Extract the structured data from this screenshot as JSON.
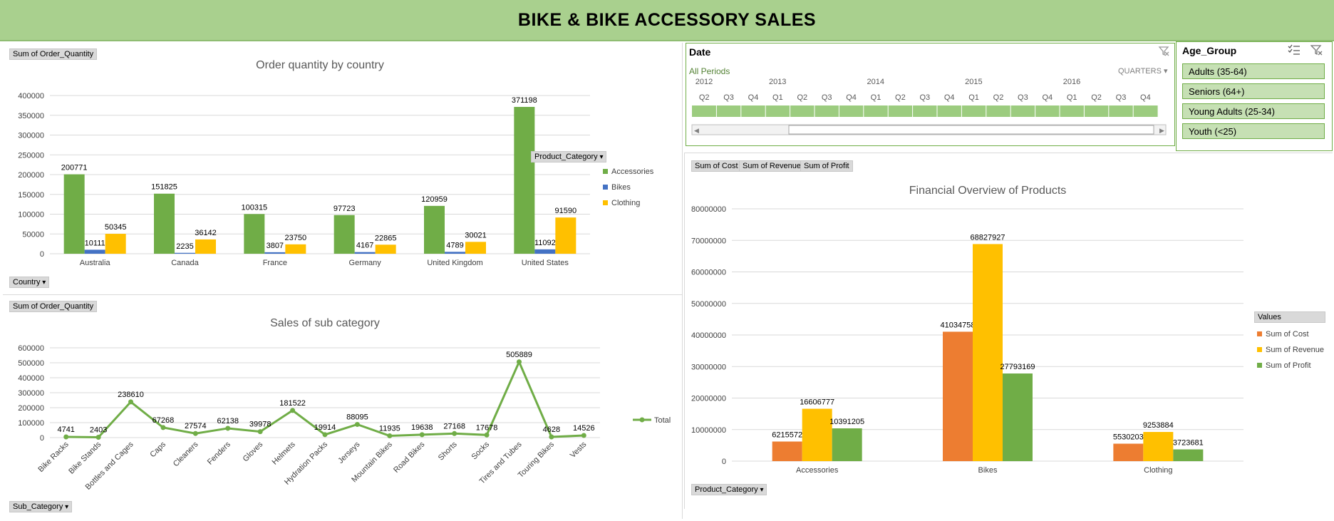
{
  "header": {
    "title": "BIKE & BIKE ACCESSORY SALES"
  },
  "country_chart": {
    "value_button": "Sum of Order_Quantity",
    "axis_button": "Country",
    "legend_button": "Product_Category",
    "chart_data": {
      "type": "bar",
      "title": "Order quantity by country",
      "categories": [
        "Australia",
        "Canada",
        "France",
        "Germany",
        "United Kingdom",
        "United States"
      ],
      "series": [
        {
          "name": "Accessories",
          "values": [
            200771,
            151825,
            100315,
            97723,
            120959,
            371198
          ],
          "color": "#70ad47"
        },
        {
          "name": "Bikes",
          "values": [
            10111,
            2235,
            3807,
            4167,
            4789,
            11092
          ],
          "color": "#4472c4"
        },
        {
          "name": "Clothing",
          "values": [
            50345,
            36142,
            23750,
            22865,
            30021,
            91590
          ],
          "color": "#ffc000"
        }
      ],
      "yticks": [
        "0",
        "50000",
        "100000",
        "150000",
        "200000",
        "250000",
        "300000",
        "350000",
        "400000"
      ],
      "ylim": [
        0,
        400000
      ],
      "legend": "right",
      "grid": true
    }
  },
  "sub_chart": {
    "value_button": "Sum of Order_Quantity",
    "axis_button": "Sub_Category",
    "chart_data": {
      "type": "line",
      "title": "Sales of sub category",
      "categories": [
        "Bike Racks",
        "Bike Stands",
        "Bottles and Cages",
        "Caps",
        "Cleaners",
        "Fenders",
        "Gloves",
        "Helmets",
        "Hydration Packs",
        "Jerseys",
        "Mountain Bikes",
        "Road Bikes",
        "Shorts",
        "Socks",
        "Tires and Tubes",
        "Touring Bikes",
        "Vests"
      ],
      "series": [
        {
          "name": "Total",
          "values": [
            4741,
            2403,
            238610,
            67268,
            27574,
            62138,
            39978,
            181522,
            19914,
            88095,
            11935,
            19638,
            27168,
            17678,
            505889,
            4628,
            14526
          ],
          "color": "#70ad47"
        }
      ],
      "yticks": [
        "0",
        "100000",
        "200000",
        "300000",
        "400000",
        "500000",
        "600000"
      ],
      "ylim": [
        0,
        600000
      ],
      "legend": "right",
      "grid": true
    }
  },
  "fin_chart": {
    "value_buttons": [
      "Sum of Cost",
      "Sum of Revenue",
      "Sum of Profit"
    ],
    "axis_button": "Product_Category",
    "legend_title": "Values",
    "chart_data": {
      "type": "bar",
      "title": "Financial Overview of Products",
      "categories": [
        "Accessories",
        "Bikes",
        "Clothing"
      ],
      "series": [
        {
          "name": "Sum of Cost",
          "values": [
            6215572,
            41034758,
            5530203
          ],
          "color": "#ed7d31"
        },
        {
          "name": "Sum of Revenue",
          "values": [
            16606777,
            68827927,
            9253884
          ],
          "color": "#ffc000"
        },
        {
          "name": "Sum of Profit",
          "values": [
            10391205,
            27793169,
            3723681
          ],
          "color": "#70ad47"
        }
      ],
      "yticks": [
        "0",
        "10000000",
        "20000000",
        "30000000",
        "40000000",
        "50000000",
        "60000000",
        "70000000",
        "80000000"
      ],
      "ylim": [
        0,
        80000000
      ],
      "legend": "right",
      "grid": true
    }
  },
  "date_slicer": {
    "title": "Date",
    "all_periods": "All Periods",
    "level": "QUARTERS",
    "years": [
      "2012",
      "2013",
      "2014",
      "2015",
      "2016"
    ],
    "quarters": [
      "Q2",
      "Q3",
      "Q4",
      "Q1",
      "Q2",
      "Q3",
      "Q4",
      "Q1",
      "Q2",
      "Q3",
      "Q4",
      "Q1",
      "Q2",
      "Q3",
      "Q4",
      "Q1",
      "Q2",
      "Q3",
      "Q4"
    ],
    "year_start_index": [
      0,
      3,
      7,
      11,
      15
    ]
  },
  "age_slicer": {
    "title": "Age_Group",
    "items": [
      "Adults (35-64)",
      "Seniors (64+)",
      "Young Adults (25-34)",
      "Youth (<25)"
    ]
  },
  "icons": {
    "clear_filter": "clear-filter-icon",
    "multi_select": "multi-select-icon"
  }
}
